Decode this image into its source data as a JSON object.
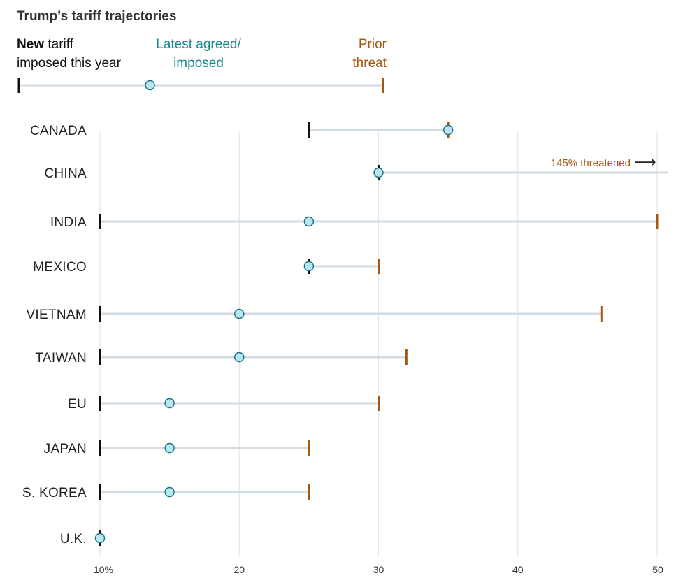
{
  "title": "Trump’s tariff trajectories",
  "legend": {
    "new_bold": "New",
    "new_rest": " tariff",
    "new_line2": "imposed this year",
    "latest_line1": "Latest agreed/",
    "latest_line2": "imposed",
    "prior_line1": "Prior",
    "prior_line2": "threat",
    "example_new": 10,
    "example_latest": 17.2,
    "example_prior": 30
  },
  "colors": {
    "new": "#111111",
    "latest_fill": "#b6e6ef",
    "latest_stroke": "#1b6f80",
    "latest_text": "#1a8a8c",
    "prior": "#a6570f",
    "range_line": "#d3dbe3",
    "grid": "#e3e6ea"
  },
  "annotation": {
    "text": "145% threatened",
    "arrow": "⟶"
  },
  "chart_data": {
    "type": "range-dot",
    "title": "Trump’s tariff trajectories",
    "xlim": [
      10,
      50
    ],
    "x_ticks": [
      10,
      20,
      30,
      40,
      50
    ],
    "x_tick_labels": [
      "10%",
      "20",
      "30",
      "40",
      "50"
    ],
    "grid": true,
    "rows": [
      {
        "label": "CANADA",
        "new": 25,
        "latest": 35,
        "prior": 35
      },
      {
        "label": "CHINA",
        "new": 30,
        "latest": 30,
        "prior": 145
      },
      {
        "label": "INDIA",
        "new": 10,
        "latest": 25,
        "prior": 50
      },
      {
        "label": "MEXICO",
        "new": 25,
        "latest": 25,
        "prior": 30
      },
      {
        "label": "VIETNAM",
        "new": 10,
        "latest": 20,
        "prior": 46
      },
      {
        "label": "TAIWAN",
        "new": 10,
        "latest": 20,
        "prior": 32
      },
      {
        "label": "EU",
        "new": 10,
        "latest": 15,
        "prior": 30
      },
      {
        "label": "JAPAN",
        "new": 10,
        "latest": 15,
        "prior": 25
      },
      {
        "label": "S. KOREA",
        "new": 10,
        "latest": 15,
        "prior": 25
      },
      {
        "label": "U.K.",
        "new": 10,
        "latest": 10,
        "prior": 10
      }
    ]
  }
}
